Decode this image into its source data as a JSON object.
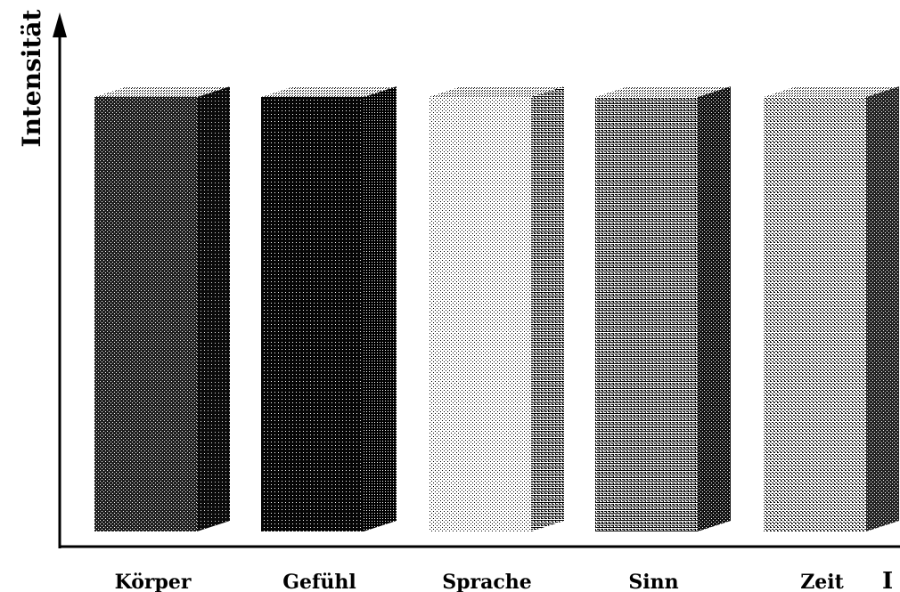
{
  "chart_data": {
    "type": "bar",
    "style": "3d-hatched",
    "ylabel": "Intensität",
    "xlabel": "",
    "categories": [
      "Körper",
      "Gefühl",
      "Sprache",
      "Sinn",
      "Zeit"
    ],
    "values": [
      1,
      1,
      1,
      1,
      1
    ],
    "ylim": [
      0,
      1.2
    ],
    "grid": false,
    "legend": "none",
    "truncated_label_fragment": "I"
  }
}
